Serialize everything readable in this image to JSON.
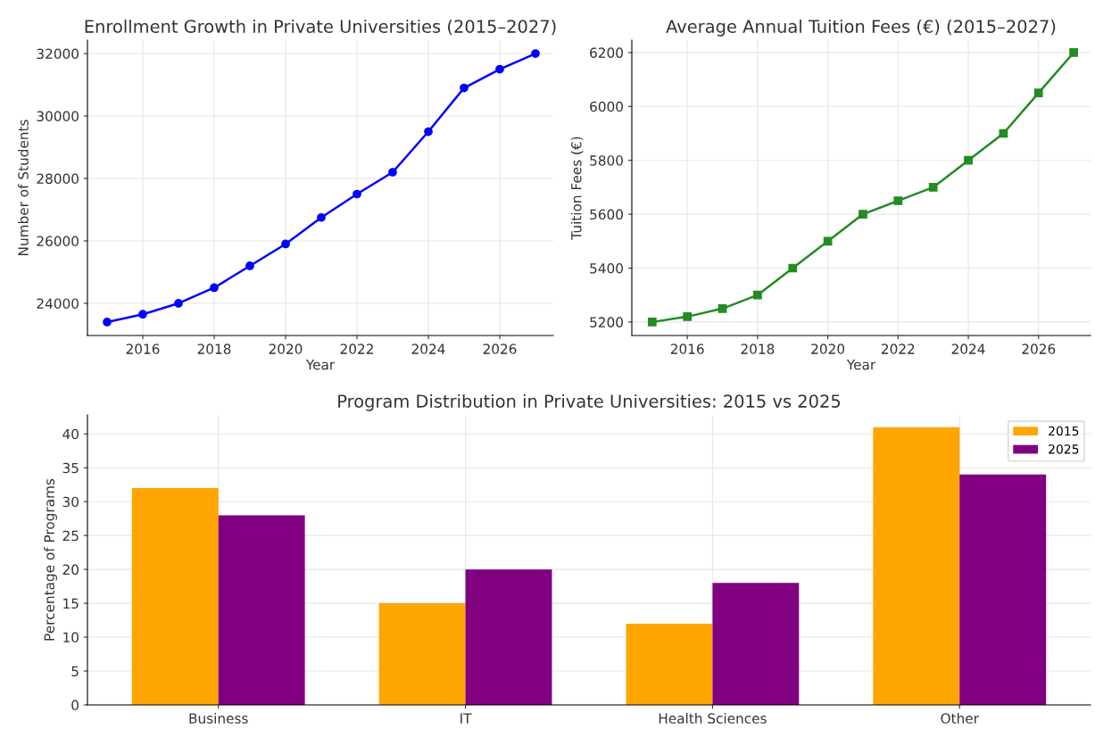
{
  "chart_data": [
    {
      "type": "line",
      "title": "Enrollment Growth in Private Universities (2015–2027)",
      "xlabel": "Year",
      "ylabel": "Number of Students",
      "x": [
        2015,
        2016,
        2017,
        2018,
        2019,
        2020,
        2021,
        2022,
        2023,
        2024,
        2025,
        2026,
        2027
      ],
      "series": [
        {
          "color": "#0000ff",
          "values": [
            23400,
            23650,
            24000,
            24500,
            25200,
            25900,
            26750,
            27500,
            28200,
            29500,
            30900,
            31500,
            32000
          ]
        }
      ],
      "xlim": [
        2014.45,
        2027.5
      ],
      "xticks": [
        2016,
        2018,
        2020,
        2022,
        2024,
        2026
      ],
      "ylim": [
        22970,
        32430
      ],
      "yticks": [
        24000,
        26000,
        28000,
        30000,
        32000
      ],
      "grid": true,
      "marker": "circle",
      "line_style": "solid"
    },
    {
      "type": "line",
      "title": "Average Annual Tuition Fees (€) (2015–2027)",
      "xlabel": "Year",
      "ylabel": "Tuition Fees (€)",
      "x": [
        2015,
        2016,
        2017,
        2018,
        2019,
        2020,
        2021,
        2022,
        2023,
        2024,
        2025,
        2026,
        2027
      ],
      "series": [
        {
          "color": "#228b22",
          "values": [
            5200,
            5220,
            5250,
            5300,
            5400,
            5500,
            5600,
            5650,
            5700,
            5800,
            5900,
            6050,
            6200
          ]
        }
      ],
      "xlim": [
        2014.42,
        2027.48
      ],
      "xticks": [
        2016,
        2018,
        2020,
        2022,
        2024,
        2026
      ],
      "ylim": [
        5150,
        6246
      ],
      "yticks": [
        5200,
        5400,
        5600,
        5800,
        6000,
        6200
      ],
      "grid": true,
      "marker": "square",
      "line_style": "solid"
    },
    {
      "type": "bar",
      "title": "Program Distribution in Private Universities: 2015 vs 2025",
      "ylabel": "Percentage of Programs",
      "categories": [
        "Business",
        "IT",
        "Health Sciences",
        "Other"
      ],
      "series": [
        {
          "name": "2015",
          "color": "#ffa500",
          "values": [
            32,
            15,
            12,
            41
          ]
        },
        {
          "name": "2025",
          "color": "#800080",
          "values": [
            28,
            20,
            18,
            34
          ]
        }
      ],
      "ylim": [
        0,
        42.8
      ],
      "yticks": [
        0,
        5,
        10,
        15,
        20,
        25,
        30,
        35,
        40
      ],
      "grid": true,
      "legend": "top right"
    }
  ]
}
